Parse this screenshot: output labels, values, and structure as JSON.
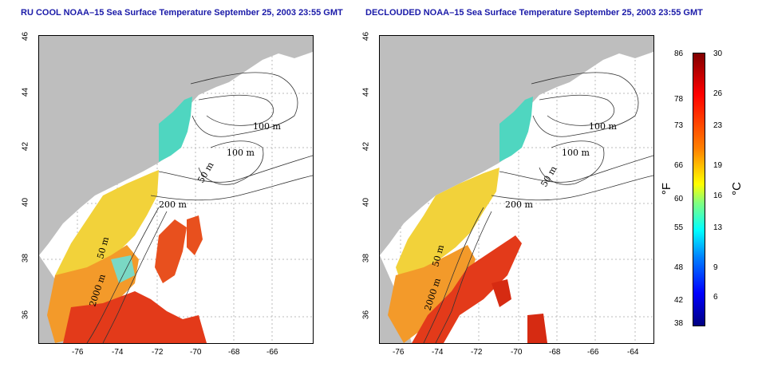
{
  "left_panel": {
    "title": "RU COOL NOAA–15 Sea Surface Temperature September 25, 2003 23:55 GMT",
    "contour_labels": [
      "100 m",
      "100 m",
      "50 m",
      "200 m",
      "50 m",
      "2000 m"
    ]
  },
  "right_panel": {
    "title": "DECLOUDED NOAA–15 Sea Surface Temperature September 25, 2003 23:55 GMT",
    "contour_labels": [
      "100 m",
      "100 m",
      "50 m",
      "200 m",
      "50 m",
      "2000 m"
    ]
  },
  "x_ticks": [
    "-76",
    "-74",
    "-72",
    "-70",
    "-68",
    "-66",
    "-64"
  ],
  "y_ticks": [
    "36",
    "38",
    "40",
    "42",
    "44",
    "46"
  ],
  "colorbar": {
    "fahrenheit_ticks": [
      "86",
      "78",
      "73",
      "66",
      "60",
      "55",
      "48",
      "42",
      "38"
    ],
    "celsius_ticks": [
      "30",
      "26",
      "23",
      "19",
      "16",
      "13",
      "9",
      "6"
    ],
    "unit_f": "°F",
    "unit_c": "°C",
    "colors": [
      "#000080",
      "#0000ff",
      "#0080ff",
      "#00ffff",
      "#80ff80",
      "#ffff00",
      "#ff8000",
      "#ff0000",
      "#800000"
    ]
  },
  "colors": {
    "land": "#bebebe",
    "title": "#1a1aa8"
  }
}
